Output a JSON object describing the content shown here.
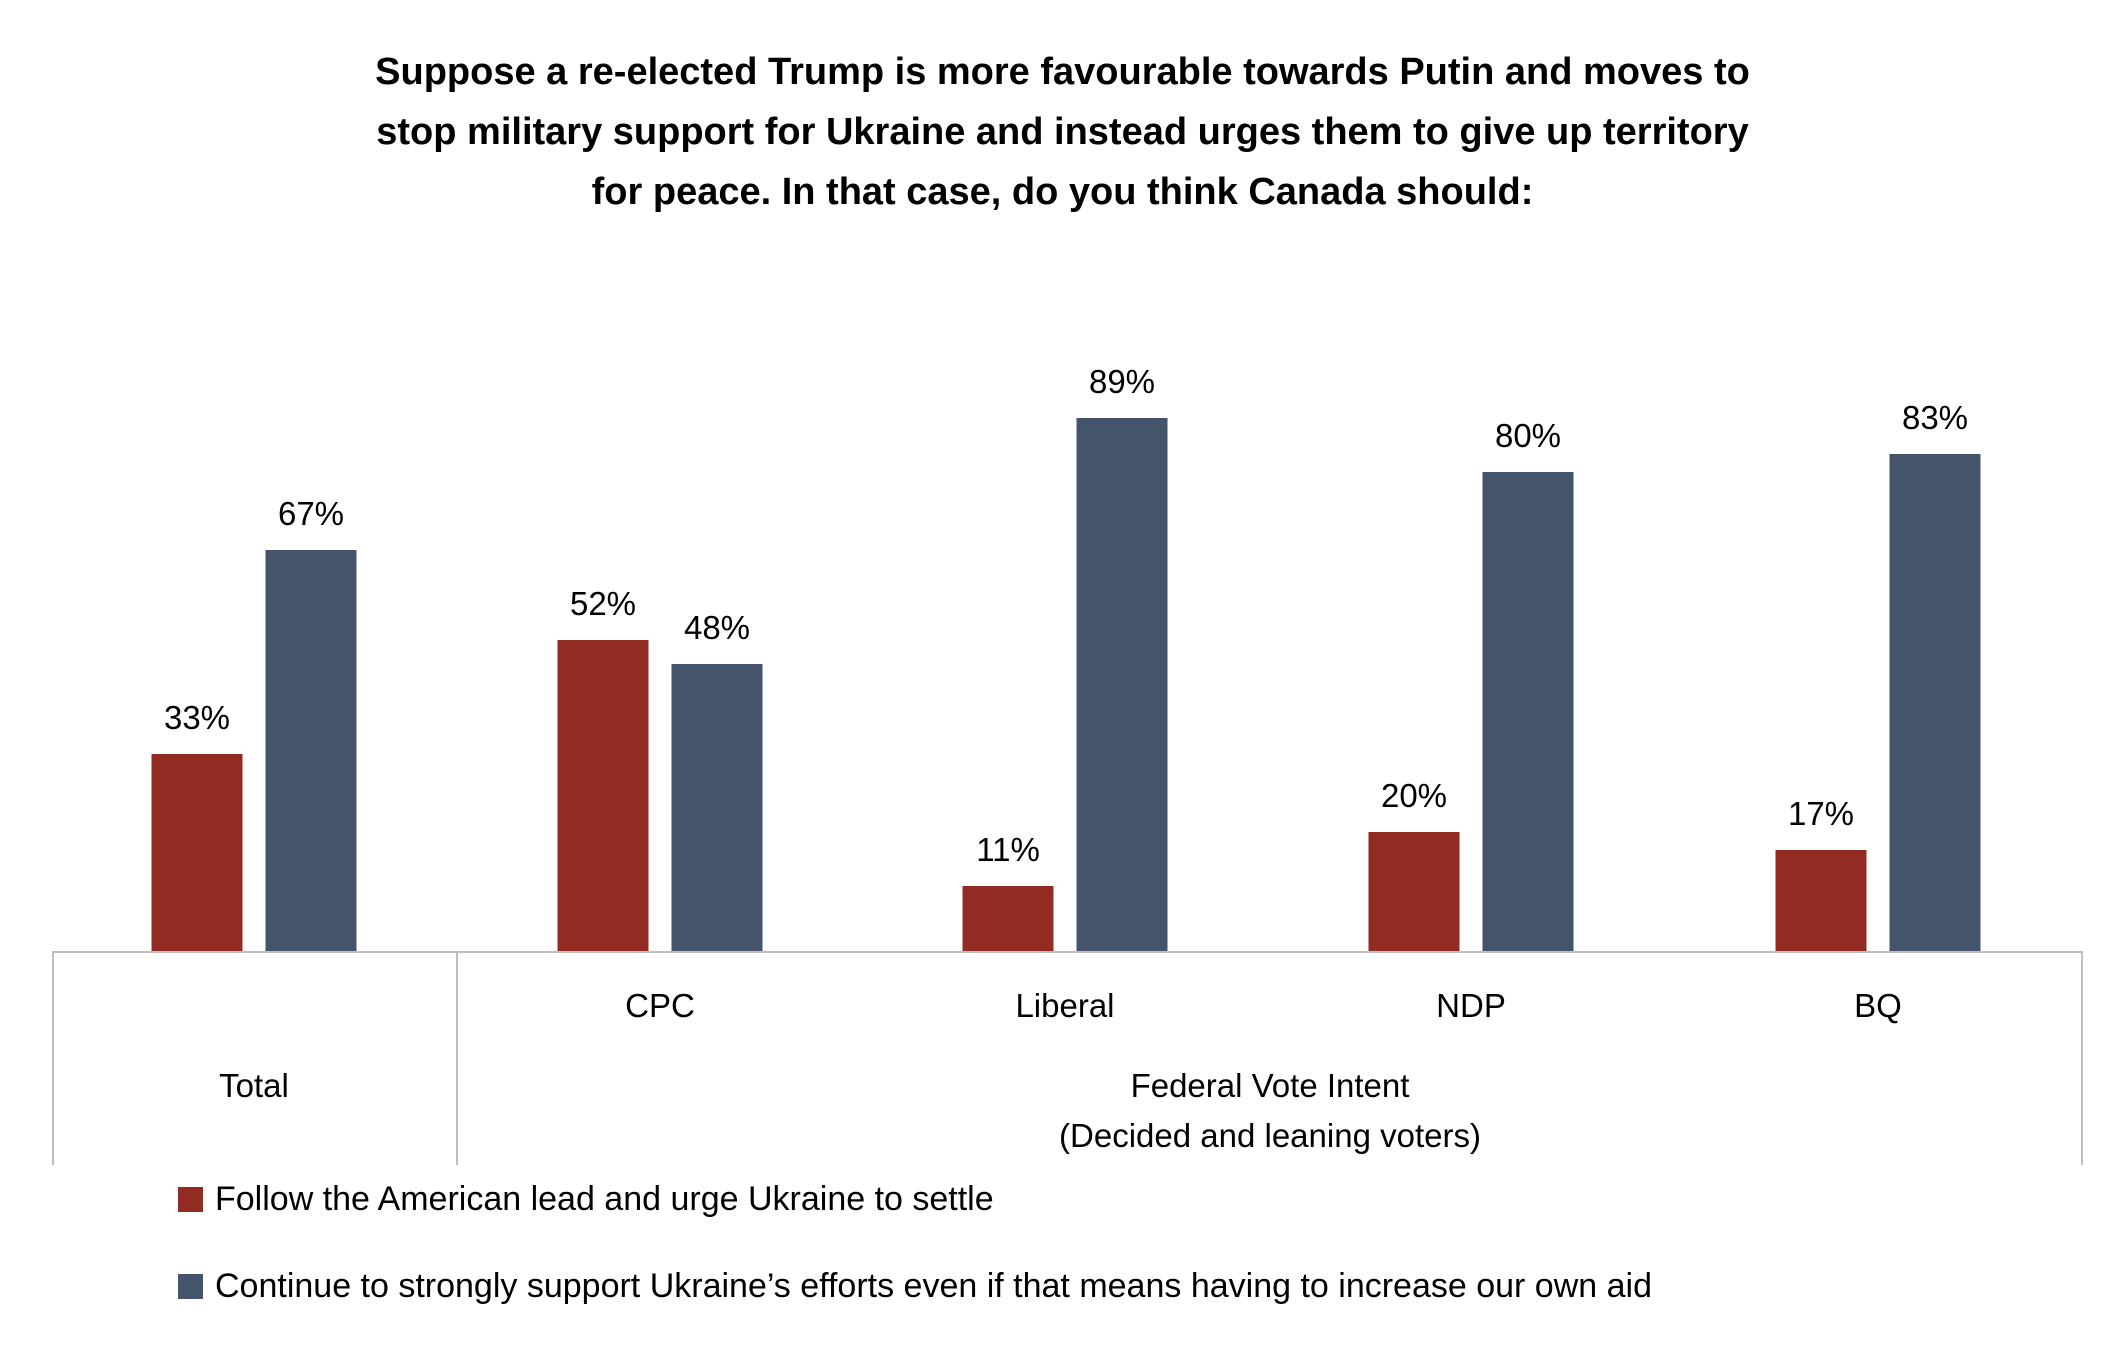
{
  "chart_data": {
    "type": "bar",
    "title_lines": [
      "Suppose a re-elected Trump is more favourable towards Putin and moves to",
      "stop military support for Ukraine and instead urges them to give up territory",
      "for peace. In that case, do you think Canada should:"
    ],
    "categories": [
      "Total",
      "CPC",
      "Liberal",
      "NDP",
      "BQ"
    ],
    "group_label_lines": [
      "Federal Vote Intent",
      "(Decided and leaning voters)"
    ],
    "series": [
      {
        "name": "Follow the American lead and urge Ukraine to settle",
        "color": "#922B21",
        "values": [
          33,
          52,
          11,
          20,
          17
        ],
        "labels": [
          "33%",
          "52%",
          "11%",
          "20%",
          "17%"
        ]
      },
      {
        "name": "Continue to strongly support Ukraine’s efforts even if that means having to increase our own aid",
        "color": "#44546A",
        "values": [
          67,
          48,
          89,
          80,
          83
        ],
        "labels": [
          "67%",
          "48%",
          "89%",
          "80%",
          "83%"
        ]
      }
    ],
    "ylim": [
      0,
      100
    ],
    "grid": false,
    "legend_position": "bottom-left"
  }
}
